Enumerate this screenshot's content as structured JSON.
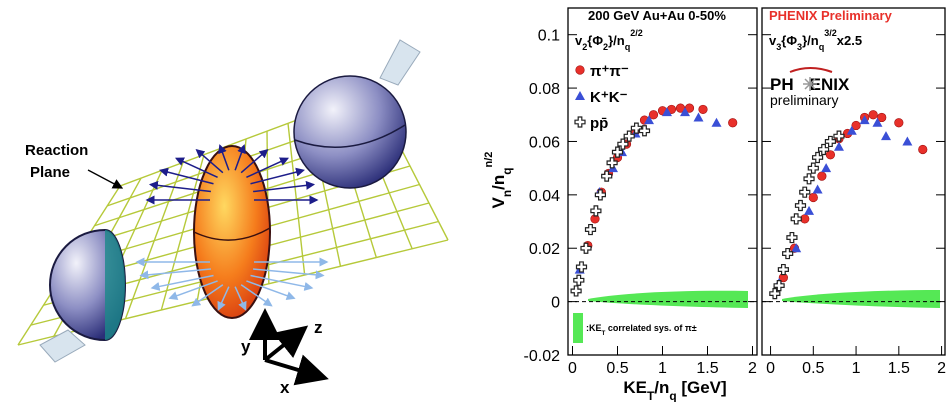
{
  "diagram": {
    "plane_label": [
      "Reaction",
      "Plane"
    ],
    "axes": [
      "x",
      "y",
      "z"
    ]
  },
  "chart_data": [
    {
      "type": "scatter",
      "title": "200 GeV Au+Au 0-50%",
      "subtitle": [
        "v",
        "2",
        "{Φ",
        "2",
        "}/n",
        "q",
        "2/2"
      ],
      "ylabel": [
        "V",
        "n",
        "/n",
        "q",
        "n/2"
      ],
      "xlabel": [
        "KE",
        "T",
        "/n",
        "q",
        " [GeV]"
      ],
      "annotation": [
        ":KE",
        "T",
        " correlated sys. of π±"
      ],
      "xlim": [
        -0.05,
        2.05
      ],
      "ylim": [
        -0.02,
        0.11
      ],
      "xticks": [
        0,
        0.5,
        1,
        1.5,
        2
      ],
      "yticks": [
        -0.02,
        0,
        0.02,
        0.04,
        0.06,
        0.08,
        0.1
      ],
      "show_ytick_labels": true,
      "legend": "upper left",
      "series": [
        {
          "name": "π⁺π⁻",
          "color": "#e8302a",
          "marker": "circle",
          "x": [
            0.17,
            0.25,
            0.32,
            0.4,
            0.5,
            0.6,
            0.7,
            0.8,
            0.9,
            1.0,
            1.1,
            1.2,
            1.3,
            1.45,
            1.78
          ],
          "values": [
            0.021,
            0.031,
            0.041,
            0.048,
            0.054,
            0.059,
            0.064,
            0.068,
            0.07,
            0.0715,
            0.072,
            0.0725,
            0.0725,
            0.072,
            0.067
          ]
        },
        {
          "name": "K⁺K⁻",
          "color": "#3a4fd6",
          "marker": "triangle",
          "x": [
            0.08,
            0.3,
            0.45,
            0.55,
            0.7,
            0.85,
            1.05,
            1.25,
            1.4,
            1.6
          ],
          "values": [
            0.012,
            0.041,
            0.05,
            0.056,
            0.063,
            0.068,
            0.071,
            0.071,
            0.069,
            0.067
          ]
        },
        {
          "name": "pp̄",
          "color": "#222222",
          "marker": "cross",
          "x": [
            0.04,
            0.07,
            0.1,
            0.15,
            0.2,
            0.26,
            0.31,
            0.38,
            0.44,
            0.5,
            0.56,
            0.63,
            0.71,
            0.8
          ],
          "values": [
            0.004,
            0.008,
            0.013,
            0.02,
            0.027,
            0.034,
            0.04,
            0.047,
            0.052,
            0.056,
            0.059,
            0.062,
            0.065,
            0.064
          ]
        }
      ]
    },
    {
      "type": "scatter",
      "title": "PHENIX Preliminary",
      "subtitle": [
        "v",
        "3",
        "{Φ",
        "3",
        "}/n",
        "q",
        "3/2",
        "x2.5"
      ],
      "logo": [
        "PH",
        "ENIX",
        "preliminary"
      ],
      "xlim": [
        -0.1,
        2.04
      ],
      "ylim": [
        -0.02,
        0.11
      ],
      "xticks": [
        0,
        0.5,
        1,
        1.5,
        2
      ],
      "yticks": [
        -0.02,
        0,
        0.02,
        0.04,
        0.06,
        0.08,
        0.1
      ],
      "show_ytick_labels": false,
      "series": [
        {
          "color": "#e8302a",
          "marker": "circle",
          "x": [
            0.15,
            0.28,
            0.4,
            0.5,
            0.6,
            0.7,
            0.8,
            0.9,
            1.0,
            1.1,
            1.2,
            1.3,
            1.5,
            1.78
          ],
          "values": [
            0.009,
            0.02,
            0.031,
            0.039,
            0.047,
            0.055,
            0.061,
            0.063,
            0.066,
            0.069,
            0.07,
            0.069,
            0.067,
            0.057
          ]
        },
        {
          "color": "#3a4fd6",
          "marker": "triangle",
          "x": [
            0.1,
            0.3,
            0.45,
            0.55,
            0.65,
            0.8,
            0.95,
            1.1,
            1.25,
            1.35,
            1.6
          ],
          "values": [
            0.007,
            0.02,
            0.034,
            0.042,
            0.05,
            0.058,
            0.064,
            0.068,
            0.067,
            0.062,
            0.06
          ]
        },
        {
          "color": "#222222",
          "marker": "cross",
          "x": [
            0.05,
            0.1,
            0.15,
            0.2,
            0.25,
            0.3,
            0.35,
            0.4,
            0.45,
            0.5,
            0.55,
            0.62,
            0.7,
            0.8
          ],
          "values": [
            0.003,
            0.006,
            0.012,
            0.018,
            0.024,
            0.031,
            0.036,
            0.041,
            0.046,
            0.05,
            0.054,
            0.057,
            0.06,
            0.062
          ]
        }
      ]
    }
  ]
}
